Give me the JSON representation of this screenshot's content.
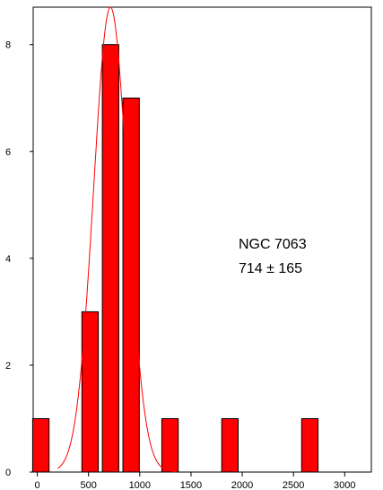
{
  "chart_data": {
    "type": "bar",
    "annotation": [
      "NGC 7063",
      "714 ± 165"
    ],
    "bars": [
      {
        "center": 35,
        "value": 1
      },
      {
        "center": 515,
        "value": 3
      },
      {
        "center": 715,
        "value": 8
      },
      {
        "center": 915,
        "value": 7
      },
      {
        "center": 1295,
        "value": 1
      },
      {
        "center": 1880,
        "value": 1
      },
      {
        "center": 2660,
        "value": 1
      }
    ],
    "bar_width_units": 160,
    "fit_curve": {
      "type": "gaussian",
      "mean": 714,
      "sigma": 165,
      "peak": 8.7
    },
    "xlim": [
      -40,
      3260
    ],
    "ylim": [
      0,
      8.7
    ],
    "x_ticks": [
      0,
      500,
      1000,
      1500,
      2000,
      2500,
      3000
    ],
    "y_ticks": [
      0,
      2,
      4,
      6,
      8
    ],
    "xlabel": "",
    "ylabel": "",
    "colors": {
      "bar": "#ff0000",
      "curve": "#ff0000",
      "axis": "#000000"
    }
  }
}
